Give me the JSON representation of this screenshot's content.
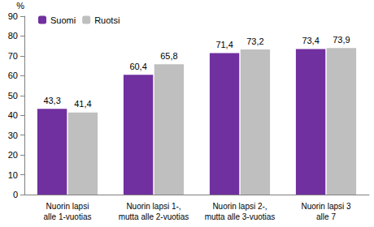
{
  "chart_data": {
    "type": "bar",
    "ylabel": "%",
    "categories": [
      "Nuorin lapsi\nalle 1-vuotias",
      "Nuorin lapsi 1-,\nmutta alle 2-vuotias",
      "Nuorin lapsi 2-,\nmutta alle 3-vuotias",
      "Nuorin lapsi 3\nalle 7"
    ],
    "series": [
      {
        "name": "Suomi",
        "color": "#7030a0",
        "values": [
          43.3,
          60.4,
          71.4,
          73.4
        ],
        "value_labels": [
          "43,3",
          "60,4",
          "71,4",
          "73,4"
        ]
      },
      {
        "name": "Ruotsi",
        "color": "#bfbfbf",
        "values": [
          41.4,
          65.8,
          73.2,
          73.9
        ],
        "value_labels": [
          "41,4",
          "65,8",
          "73,2",
          "73,9"
        ]
      }
    ],
    "ylim": [
      0,
      90
    ],
    "yticks": [
      0,
      10,
      20,
      30,
      40,
      50,
      60,
      70,
      80,
      90
    ],
    "grid": false,
    "legend": "top-left",
    "data_labels": true
  }
}
